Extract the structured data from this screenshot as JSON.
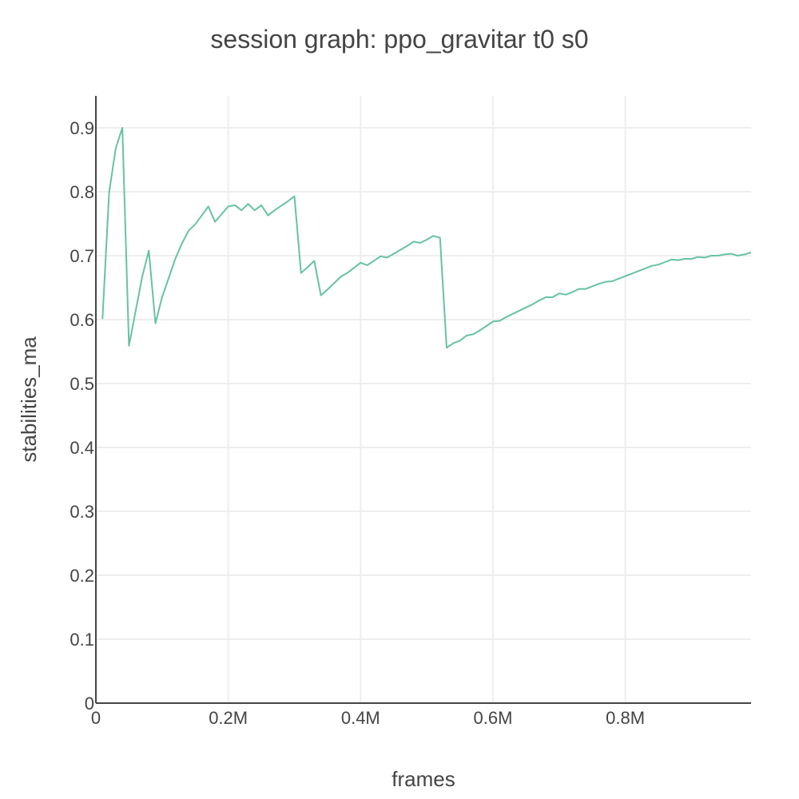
{
  "chart_data": {
    "type": "line",
    "title": "session graph: ppo_gravitar t0 s0",
    "xlabel": "frames",
    "ylabel": "stabilities_ma",
    "xlim": [
      0,
      990000
    ],
    "ylim": [
      0,
      0.95
    ],
    "x_ticks": [
      {
        "value": 0,
        "label": "0"
      },
      {
        "value": 200000,
        "label": "0.2M"
      },
      {
        "value": 400000,
        "label": "0.4M"
      },
      {
        "value": 600000,
        "label": "0.6M"
      },
      {
        "value": 800000,
        "label": "0.8M"
      }
    ],
    "y_ticks": [
      {
        "value": 0,
        "label": "0"
      },
      {
        "value": 0.1,
        "label": "0.1"
      },
      {
        "value": 0.2,
        "label": "0.2"
      },
      {
        "value": 0.3,
        "label": "0.3"
      },
      {
        "value": 0.4,
        "label": "0.4"
      },
      {
        "value": 0.5,
        "label": "0.5"
      },
      {
        "value": 0.6,
        "label": "0.6"
      },
      {
        "value": 0.7,
        "label": "0.7"
      },
      {
        "value": 0.8,
        "label": "0.8"
      },
      {
        "value": 0.9,
        "label": "0.9"
      }
    ],
    "grid": true,
    "legend": "none",
    "series": [
      {
        "color": "#66c2a5",
        "x": [
          10000,
          20000,
          30000,
          40000,
          50000,
          60000,
          70000,
          80000,
          90000,
          100000,
          110000,
          120000,
          130000,
          140000,
          150000,
          160000,
          170000,
          180000,
          190000,
          200000,
          210000,
          220000,
          230000,
          240000,
          250000,
          260000,
          270000,
          280000,
          290000,
          300000,
          310000,
          320000,
          330000,
          340000,
          350000,
          360000,
          370000,
          380000,
          390000,
          400000,
          410000,
          420000,
          430000,
          440000,
          450000,
          460000,
          470000,
          480000,
          490000,
          500000,
          510000,
          520000,
          530000,
          540000,
          550000,
          560000,
          570000,
          580000,
          590000,
          600000,
          610000,
          620000,
          630000,
          640000,
          650000,
          660000,
          670000,
          680000,
          690000,
          700000,
          710000,
          720000,
          730000,
          740000,
          750000,
          760000,
          770000,
          780000,
          790000,
          800000,
          810000,
          820000,
          830000,
          840000,
          850000,
          860000,
          870000,
          880000,
          890000,
          900000,
          910000,
          920000,
          930000,
          940000,
          950000,
          960000,
          970000,
          980000,
          990000
        ],
        "y": [
          0.601,
          0.799,
          0.868,
          0.9,
          0.559,
          0.613,
          0.667,
          0.708,
          0.594,
          0.635,
          0.665,
          0.695,
          0.719,
          0.739,
          0.749,
          0.763,
          0.777,
          0.753,
          0.765,
          0.777,
          0.779,
          0.771,
          0.781,
          0.771,
          0.779,
          0.763,
          0.771,
          0.778,
          0.785,
          0.793,
          0.673,
          0.682,
          0.692,
          0.638,
          0.647,
          0.657,
          0.667,
          0.673,
          0.681,
          0.689,
          0.685,
          0.692,
          0.699,
          0.697,
          0.703,
          0.709,
          0.715,
          0.722,
          0.72,
          0.725,
          0.731,
          0.728,
          0.556,
          0.563,
          0.567,
          0.575,
          0.577,
          0.583,
          0.59,
          0.597,
          0.598,
          0.604,
          0.609,
          0.614,
          0.619,
          0.624,
          0.63,
          0.635,
          0.635,
          0.641,
          0.639,
          0.643,
          0.648,
          0.648,
          0.652,
          0.656,
          0.659,
          0.66,
          0.664,
          0.668,
          0.672,
          0.676,
          0.68,
          0.684,
          0.686,
          0.69,
          0.694,
          0.693,
          0.695,
          0.695,
          0.698,
          0.697,
          0.7,
          0.7,
          0.702,
          0.703,
          0.7,
          0.702,
          0.705
        ]
      }
    ]
  }
}
